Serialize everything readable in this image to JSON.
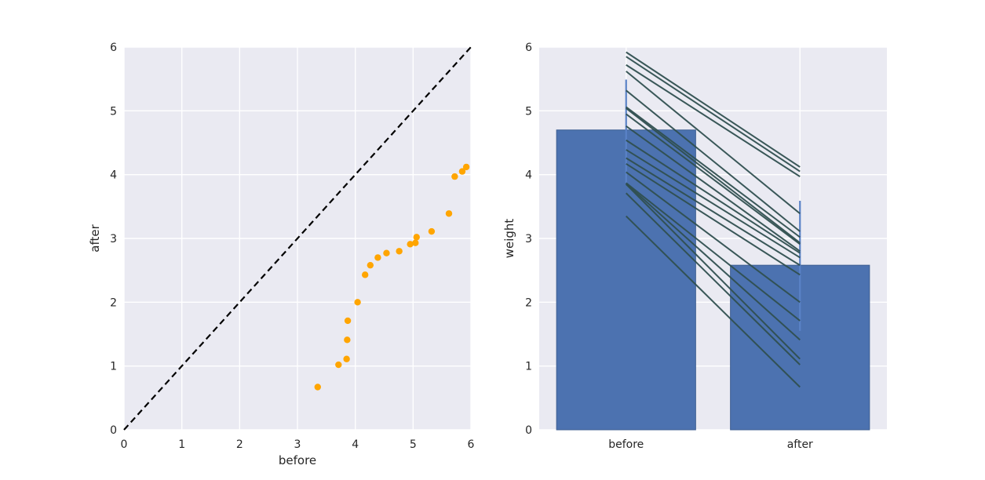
{
  "figure": {
    "background": "#ffffff",
    "axes_background": "#eaeaf2",
    "grid_color": "#ffffff",
    "text_color": "#262626"
  },
  "chart_data": [
    {
      "type": "scatter",
      "title": "",
      "xlabel": "before",
      "ylabel": "after",
      "xlim": [
        0,
        6
      ],
      "ylim": [
        0,
        6
      ],
      "xticks": [
        0,
        1,
        2,
        3,
        4,
        5,
        6
      ],
      "yticks": [
        0,
        1,
        2,
        3,
        4,
        5,
        6
      ],
      "grid": true,
      "marker_color": "#ffa500",
      "marker_radius": 4.2,
      "identity_line": {
        "from": [
          0,
          0
        ],
        "to": [
          6,
          6
        ],
        "color": "#000000",
        "style": "dashed",
        "width": 2.2
      },
      "points": [
        [
          3.35,
          0.67
        ],
        [
          3.71,
          1.02
        ],
        [
          3.85,
          1.11
        ],
        [
          3.86,
          1.41
        ],
        [
          3.87,
          1.71
        ],
        [
          4.04,
          2.0
        ],
        [
          4.17,
          2.43
        ],
        [
          4.26,
          2.58
        ],
        [
          4.39,
          2.7
        ],
        [
          4.54,
          2.77
        ],
        [
          4.76,
          2.8
        ],
        [
          4.95,
          2.91
        ],
        [
          5.04,
          2.93
        ],
        [
          5.06,
          3.02
        ],
        [
          5.32,
          3.11
        ],
        [
          5.62,
          3.39
        ],
        [
          5.72,
          3.97
        ],
        [
          5.85,
          4.05
        ],
        [
          5.92,
          4.12
        ]
      ]
    },
    {
      "type": "bar",
      "title": "",
      "xlabel": "",
      "ylabel": "weight",
      "ylim": [
        0,
        6
      ],
      "yticks": [
        0,
        1,
        2,
        3,
        4,
        5,
        6
      ],
      "grid": true,
      "categories": [
        "before",
        "after"
      ],
      "values": [
        4.7,
        2.58
      ],
      "errors": [
        [
          3.87,
          5.49
        ],
        [
          1.55,
          3.59
        ]
      ],
      "bar_color": "#4c72b0",
      "bar_edge_color": "#3d5e92",
      "error_color": "#5a82c7",
      "pair_line_color": "#2f4f4f",
      "pair_line_width": 2,
      "pairs": [
        [
          3.35,
          0.67
        ],
        [
          3.71,
          1.02
        ],
        [
          3.85,
          1.11
        ],
        [
          3.86,
          1.41
        ],
        [
          3.87,
          1.71
        ],
        [
          4.04,
          2.0
        ],
        [
          4.17,
          2.43
        ],
        [
          4.26,
          2.58
        ],
        [
          4.39,
          2.7
        ],
        [
          4.54,
          2.77
        ],
        [
          4.76,
          2.8
        ],
        [
          4.95,
          2.91
        ],
        [
          5.04,
          2.93
        ],
        [
          5.06,
          3.02
        ],
        [
          5.32,
          3.11
        ],
        [
          5.62,
          3.39
        ],
        [
          5.72,
          3.97
        ],
        [
          5.85,
          4.05
        ],
        [
          5.92,
          4.12
        ]
      ]
    }
  ]
}
